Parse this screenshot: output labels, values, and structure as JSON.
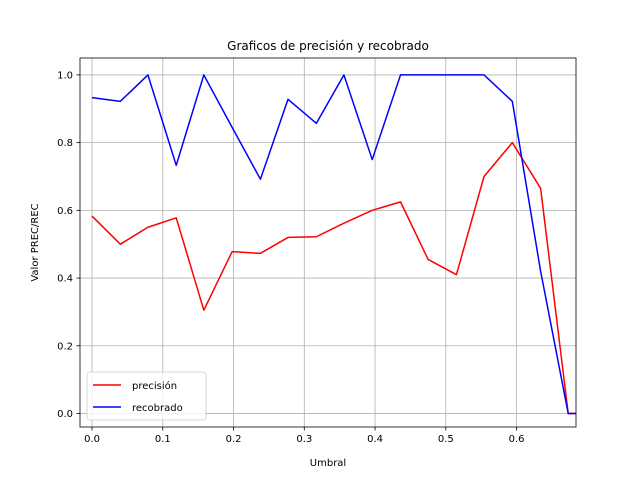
{
  "chart_data": {
    "type": "line",
    "title": "Graficos de precisión y recobrado",
    "xlabel": "Umbral",
    "ylabel": "Valor PREC/REC",
    "xlim": [
      -0.017,
      0.684
    ],
    "ylim": [
      -0.04,
      1.05
    ],
    "xticks": [
      0.0,
      0.1,
      0.2,
      0.3,
      0.4,
      0.5,
      0.6
    ],
    "xtick_labels": [
      "0.0",
      "0.1",
      "0.2",
      "0.3",
      "0.4",
      "0.5",
      "0.6"
    ],
    "yticks": [
      0.0,
      0.2,
      0.4,
      0.6,
      0.8,
      1.0
    ],
    "ytick_labels": [
      "0.0",
      "0.2",
      "0.4",
      "0.6",
      "0.8",
      "1.0"
    ],
    "grid": true,
    "legend_position": "lower-left",
    "x": [
      0.0,
      0.04,
      0.079,
      0.119,
      0.158,
      0.198,
      0.238,
      0.277,
      0.317,
      0.356,
      0.396,
      0.436,
      0.475,
      0.515,
      0.554,
      0.594,
      0.634,
      0.673,
      0.684
    ],
    "series": [
      {
        "name": "precisión",
        "color": "#ff0000",
        "values": [
          0.583,
          0.5,
          0.55,
          0.578,
          0.305,
          0.478,
          0.473,
          0.52,
          0.522,
          0.562,
          0.6,
          0.625,
          0.455,
          0.41,
          0.7,
          0.8,
          0.665,
          0.0,
          0.0
        ]
      },
      {
        "name": "recobrado",
        "color": "#0000ff",
        "values": [
          0.933,
          0.922,
          1.0,
          0.733,
          1.0,
          0.845,
          0.692,
          0.928,
          0.857,
          1.0,
          0.75,
          1.0,
          1.0,
          1.0,
          1.0,
          0.922,
          0.42,
          0.0,
          0.0
        ]
      }
    ]
  }
}
